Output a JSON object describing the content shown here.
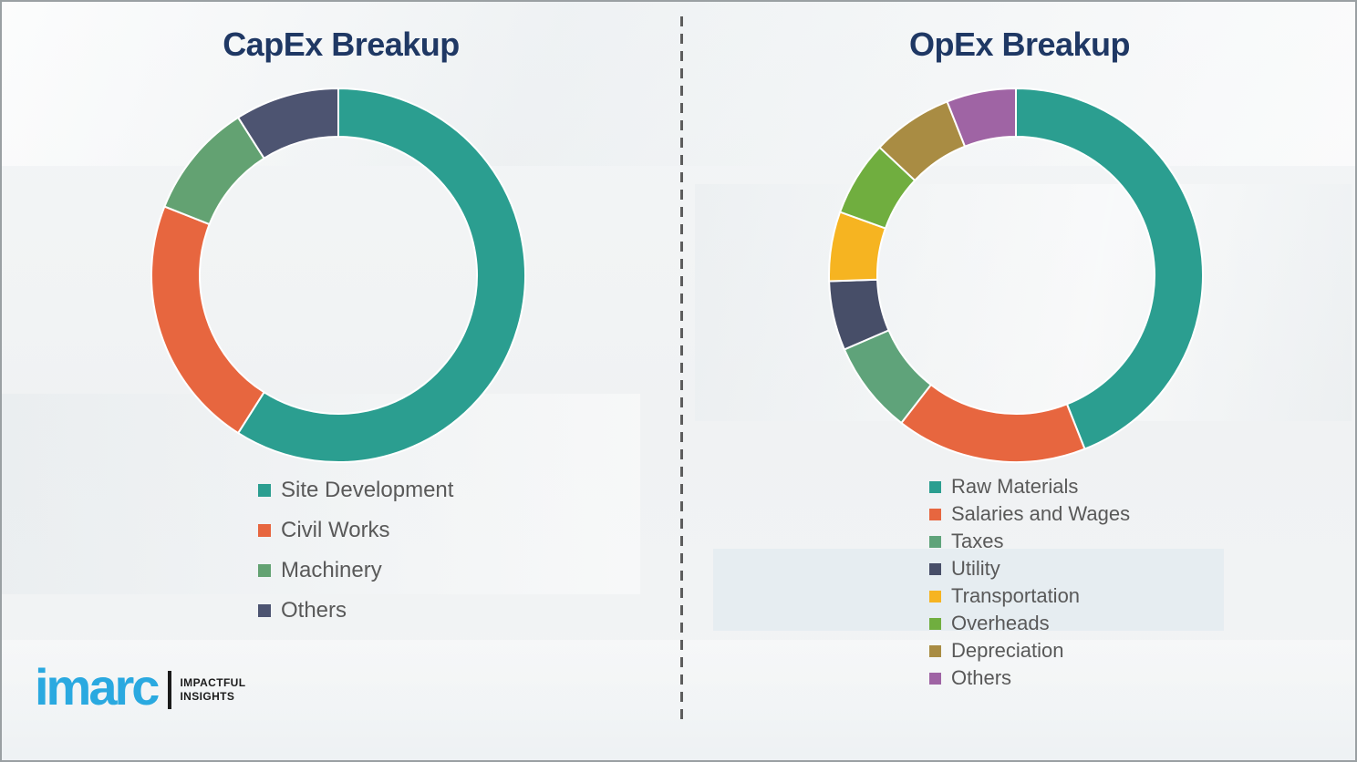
{
  "chart_data": [
    {
      "type": "donut",
      "title": "CapEx Breakup",
      "legend_position": "bottom-left",
      "segments": [
        {
          "label": "Site Development",
          "value_pct": 59,
          "color": "#2b9e90"
        },
        {
          "label": "Civil Works",
          "value_pct": 22,
          "color": "#e7663f"
        },
        {
          "label": "Machinery",
          "value_pct": 10,
          "color": "#63a272"
        },
        {
          "label": "Others",
          "value_pct": 9,
          "color": "#4d5471"
        }
      ]
    },
    {
      "type": "donut",
      "title": "OpEx Breakup",
      "legend_position": "bottom-left",
      "segments": [
        {
          "label": "Raw Materials",
          "value_pct": 44,
          "color": "#2b9e90"
        },
        {
          "label": "Salaries and Wages",
          "value_pct": 16.5,
          "color": "#e7663f"
        },
        {
          "label": "Taxes",
          "value_pct": 8,
          "color": "#5fa37a"
        },
        {
          "label": "Utility",
          "value_pct": 6,
          "color": "#474e68"
        },
        {
          "label": "Transportation",
          "value_pct": 6,
          "color": "#f6b421"
        },
        {
          "label": "Overheads",
          "value_pct": 6.5,
          "color": "#70ae3f"
        },
        {
          "label": "Depreciation",
          "value_pct": 7,
          "color": "#a98c43"
        },
        {
          "label": "Others",
          "value_pct": 6,
          "color": "#9f64a4"
        }
      ]
    }
  ],
  "logo": {
    "brand": "imarc",
    "brand_color": "#2aa9e0",
    "tagline": [
      "IMPACTFUL",
      "INSIGHTS"
    ]
  }
}
